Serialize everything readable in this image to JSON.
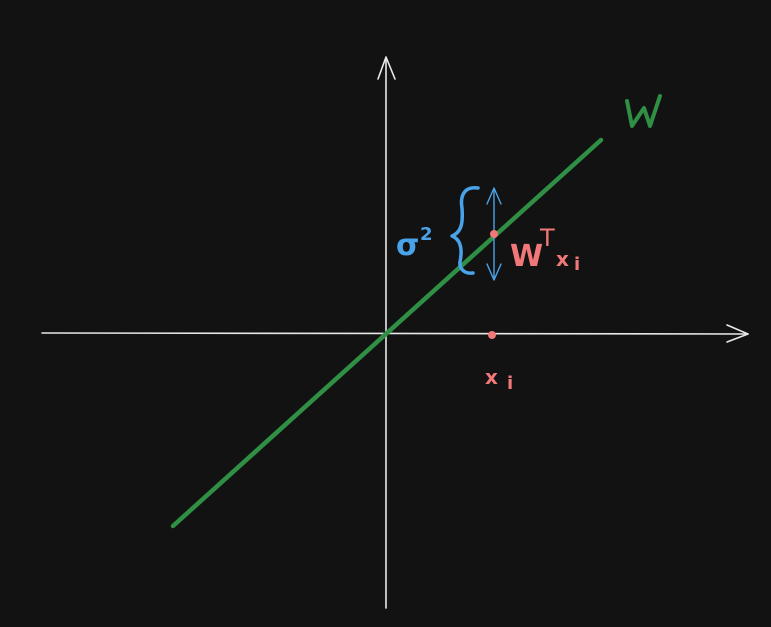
{
  "colors": {
    "background": "#121212",
    "axes": "#e8e8e8",
    "line_w": "#2f8f45",
    "points": "#f07878",
    "variance": "#4aa3e8"
  },
  "labels": {
    "w_line": "W",
    "projection": "W",
    "projection_sup": "T",
    "projection_x": "x",
    "projection_sub": "i",
    "point_x": "x",
    "point_sub": "i",
    "variance": "σ",
    "variance_sup": "2"
  }
}
